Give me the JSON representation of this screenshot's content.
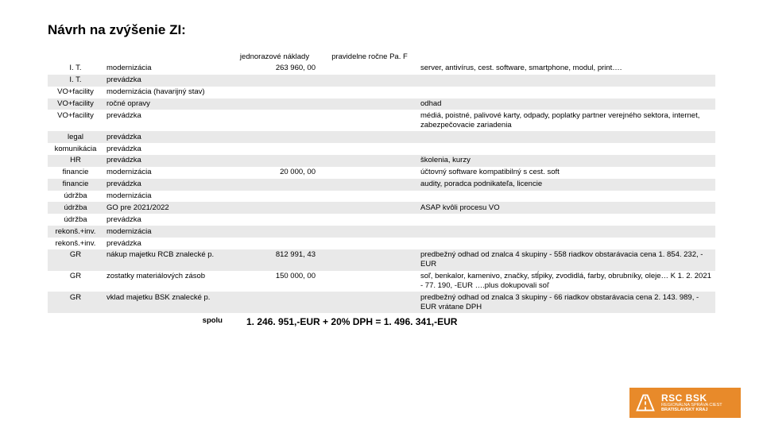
{
  "title": "Návrh na zvýšenie ZI:",
  "headers": {
    "c3": "jednorazové náklady",
    "c4": "pravidelne ročne Pa. F"
  },
  "rows": [
    {
      "c1": "I. T.",
      "c2": "modernizácia",
      "c3": "263 960, 00",
      "c4": "",
      "c5": "server, antivírus, cest. software, smartphone, modul, print…."
    },
    {
      "c1": "I. T.",
      "c2": "prevádzka",
      "c3": "",
      "c4": "",
      "c5": ""
    },
    {
      "c1": "VO+facility",
      "c2": "modernizácia (havarijný stav)",
      "c3": "",
      "c4": "",
      "c5": ""
    },
    {
      "c1": "VO+facility",
      "c2": "ročné opravy",
      "c3": "",
      "c4": "",
      "c5": "odhad"
    },
    {
      "c1": "VO+facility",
      "c2": "prevádzka",
      "c3": "",
      "c4": "",
      "c5": "médiá, poistné, palivové karty, odpady, poplatky partner verejného sektora, internet, zabezpečovacie zariadenia"
    },
    {
      "c1": "legal",
      "c2": "prevádzka",
      "c3": "",
      "c4": "",
      "c5": ""
    },
    {
      "c1": "komunikácia",
      "c2": "prevádzka",
      "c3": "",
      "c4": "",
      "c5": ""
    },
    {
      "c1": "HR",
      "c2": "prevádzka",
      "c3": "",
      "c4": "",
      "c5": "školenia, kurzy"
    },
    {
      "c1": "financie",
      "c2": "modernizácia",
      "c3": "20 000, 00",
      "c4": "",
      "c5": "účtovný software kompatibilný s cest. soft"
    },
    {
      "c1": "financie",
      "c2": "prevádzka",
      "c3": "",
      "c4": "",
      "c5": "audity, poradca podnikateľa, licencie"
    },
    {
      "c1": "údržba",
      "c2": "modernizácia",
      "c3": "",
      "c4": "",
      "c5": ""
    },
    {
      "c1": "údržba",
      "c2": "GO pre 2021/2022",
      "c3": "",
      "c4": "",
      "c5": "ASAP kvôli procesu VO"
    },
    {
      "c1": "údržba",
      "c2": "prevádzka",
      "c3": "",
      "c4": "",
      "c5": ""
    },
    {
      "c1": "rekonš.+inv.",
      "c2": "modernizácia",
      "c3": "",
      "c4": "",
      "c5": ""
    },
    {
      "c1": "rekonš.+inv.",
      "c2": "prevádzka",
      "c3": "",
      "c4": "",
      "c5": ""
    },
    {
      "c1": "GR",
      "c2": "nákup majetku RCB znalecké p.",
      "c3": "812 991, 43",
      "c4": "",
      "c5": "predbežný odhad od znalca 4 skupiny - 558 riadkov obstarávacia cena 1. 854. 232, - EUR"
    },
    {
      "c1": "GR",
      "c2": "zostatky materiálových zásob",
      "c3": "150 000, 00",
      "c4": "",
      "c5": "soľ, benkalor, kamenivo, značky, stĺpiky, zvodidlá, farby, obrubníky, oleje… K 1. 2. 2021 - 77. 190, -EUR ….plus dokupovali soľ"
    },
    {
      "c1": "GR",
      "c2": "vklad majetku BSK znalecké p.",
      "c3": "",
      "c4": "",
      "c5": "predbežný odhad od znalca 3 skupiny - 66 riadkov obstarávacia cena 2. 143. 989, -EUR vrátane DPH"
    }
  ],
  "total_label": "spolu",
  "total_value": "1. 246. 951,-EUR + 20% DPH = 1. 496. 341,-EUR",
  "logo": {
    "line1": "RSC BSK",
    "line2": "REGIONÁLNA SPRÁVA CIEST",
    "line3": "BRATISLAVSKÝ KRAJ",
    "bg": "#e88a2a",
    "icon": "#ffffff"
  },
  "stripe_even": "#e9e9e9",
  "stripe_odd": "#ffffff"
}
